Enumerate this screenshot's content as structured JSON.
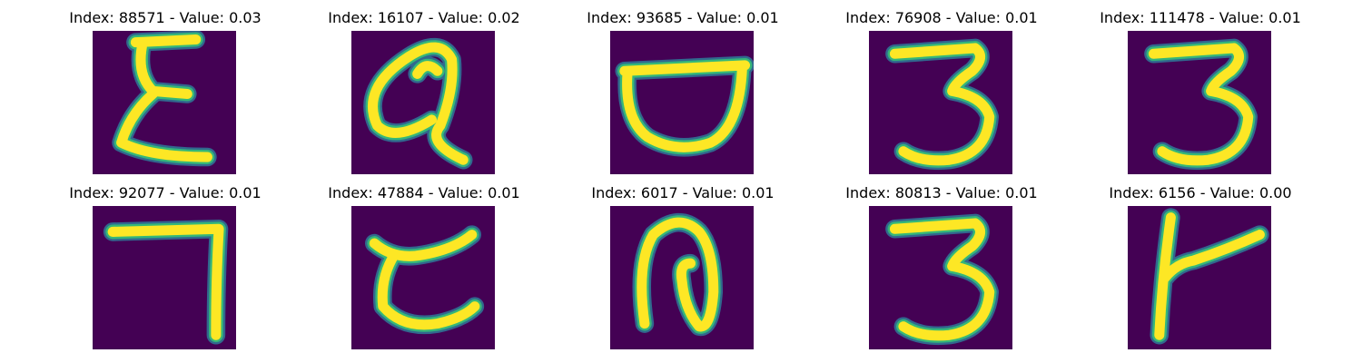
{
  "colors": {
    "background": "#440154",
    "stroke_core": "#fde725",
    "stroke_mid": "#35b779",
    "stroke_edge": "#31688e"
  },
  "panels": [
    {
      "title": "Index: 88571 - Value: 0.03",
      "glyph": "epsilon-glyph"
    },
    {
      "title": "Index: 16107 - Value: 0.02",
      "glyph": "alpha-loop-glyph"
    },
    {
      "title": "Index: 93685 - Value: 0.01",
      "glyph": "bowl-glyph"
    },
    {
      "title": "Index: 76908 - Value: 0.01",
      "glyph": "three-glyph"
    },
    {
      "title": "Index: 111478 - Value: 0.01",
      "glyph": "three-glyph"
    },
    {
      "title": "Index: 92077 - Value: 0.01",
      "glyph": "seven-glyph"
    },
    {
      "title": "Index: 47884 - Value: 0.01",
      "glyph": "reversed-c-glyph"
    },
    {
      "title": "Index: 6017 - Value: 0.01",
      "glyph": "n-loop-glyph"
    },
    {
      "title": "Index: 80813 - Value: 0.01",
      "glyph": "three-glyph"
    },
    {
      "title": "Index: 6156 - Value: 0.00",
      "glyph": "k-like-glyph"
    }
  ]
}
